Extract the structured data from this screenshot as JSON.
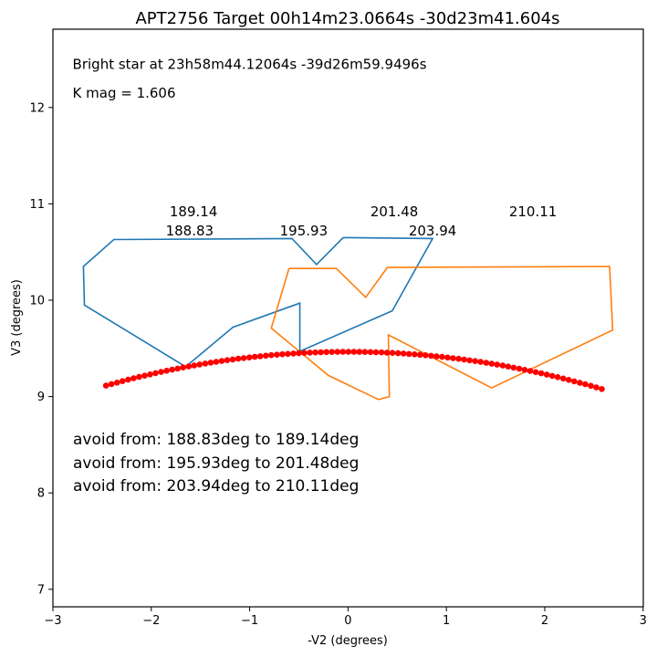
{
  "chart_data": {
    "type": "line",
    "title": "APT2756 Target 00h14m23.0664s -30d23m41.604s",
    "xlabel": "-V2 (degrees)",
    "ylabel": "V3 (degrees)",
    "xlim": [
      -3,
      3
    ],
    "ylim": [
      6.8,
      12.8
    ],
    "xticks": [
      -3,
      -2,
      -1,
      0,
      1,
      2,
      3
    ],
    "yticks": [
      7,
      8,
      9,
      10,
      11,
      12
    ],
    "grid": false,
    "annotations": [
      {
        "text": "Bright star at   23h58m44.12064s -39d26m59.9496s",
        "x": -2.8,
        "y": 12.45
      },
      {
        "text": "K mag = 1.606",
        "x": -2.8,
        "y": 12.15
      }
    ],
    "pa_labels": [
      {
        "text": "189.14",
        "x": -1.57,
        "y": 10.92
      },
      {
        "text": "188.83",
        "x": -1.61,
        "y": 10.72
      },
      {
        "text": "195.93",
        "x": -0.45,
        "y": 10.72
      },
      {
        "text": "201.48",
        "x": 0.47,
        "y": 10.92
      },
      {
        "text": "203.94",
        "x": 0.86,
        "y": 10.72
      },
      {
        "text": "210.11",
        "x": 1.88,
        "y": 10.92
      }
    ],
    "avoid_text": [
      "avoid from: 188.83deg to 189.14deg",
      "avoid from: 195.93deg to 201.48deg",
      "avoid from: 203.94deg to 210.11deg"
    ],
    "series": [
      {
        "color": "#1f77b4",
        "points": [
          [
            -1.65,
            9.31
          ],
          [
            -2.68,
            9.95
          ],
          [
            -2.69,
            10.35
          ],
          [
            -2.38,
            10.63
          ],
          [
            -0.57,
            10.64
          ],
          [
            -0.32,
            10.37
          ],
          [
            -0.05,
            10.65
          ],
          [
            0.86,
            10.64
          ],
          [
            0.45,
            9.89
          ],
          [
            -0.49,
            9.47
          ],
          [
            -0.49,
            9.97
          ],
          [
            -1.17,
            9.72
          ],
          [
            -1.65,
            9.31
          ]
        ]
      },
      {
        "color": "#ff7f0e",
        "points": [
          [
            -0.6,
            10.33
          ],
          [
            -0.12,
            10.33
          ],
          [
            0.18,
            10.03
          ],
          [
            0.4,
            10.34
          ],
          [
            2.66,
            10.35
          ],
          [
            2.69,
            9.69
          ],
          [
            1.46,
            9.09
          ],
          [
            0.41,
            9.64
          ],
          [
            0.42,
            9.0
          ],
          [
            0.31,
            8.97
          ],
          [
            -0.2,
            9.22
          ],
          [
            -0.78,
            9.71
          ],
          [
            -0.6,
            10.33
          ]
        ]
      }
    ],
    "marker_series": {
      "color": "#ff0000",
      "x_start": -2.46,
      "x_end": 2.58,
      "count": 91,
      "y_peak": 9.465,
      "x_peak": 0.0,
      "curvature": 0.058
    }
  }
}
